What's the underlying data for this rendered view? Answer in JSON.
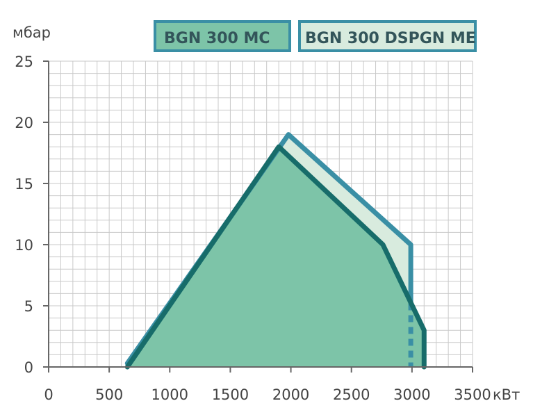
{
  "chart_data": {
    "type": "area",
    "xlabel": "кВт",
    "ylabel": "мбар",
    "xlim": [
      0,
      3500
    ],
    "ylim": [
      0,
      25
    ],
    "x_ticks": [
      "0",
      "500",
      "1000",
      "1500",
      "2000",
      "2500",
      "3000",
      "3500"
    ],
    "y_ticks": [
      "0",
      "5",
      "10",
      "15",
      "20",
      "25"
    ],
    "grid": true,
    "legend_position": "top-right",
    "series": [
      {
        "name": "BGN 300 DSPGN ME",
        "color": "#3a8fa5",
        "fill": "#d8ebde",
        "points": [
          [
            650,
            0.3
          ],
          [
            1980,
            19
          ],
          [
            2990,
            10
          ],
          [
            2990,
            5.2
          ]
        ],
        "dashed_segment": [
          [
            2990,
            5.2
          ],
          [
            2990,
            0
          ]
        ]
      },
      {
        "name": "BGN 300 MC",
        "color": "#176c6a",
        "fill": "#7dc4a8",
        "points": [
          [
            650,
            0
          ],
          [
            1900,
            18
          ],
          [
            2760,
            10
          ],
          [
            3100,
            3
          ],
          [
            3100,
            0
          ]
        ]
      }
    ]
  }
}
